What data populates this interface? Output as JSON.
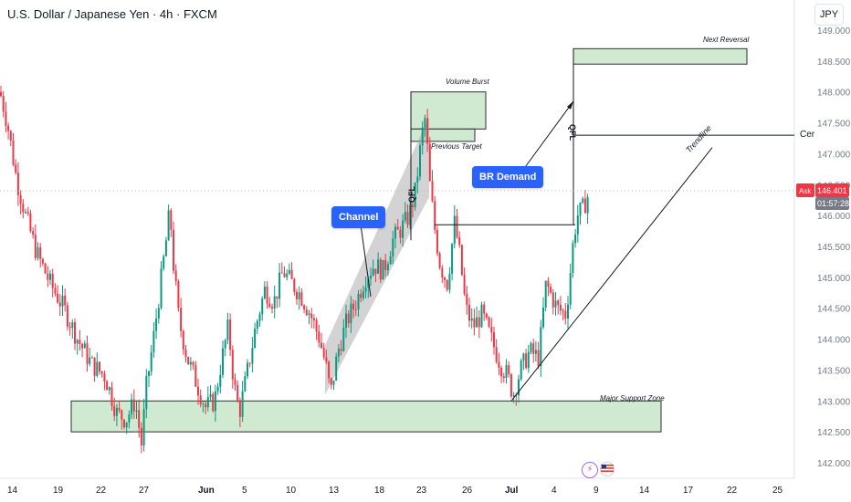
{
  "header": {
    "symbol_title": "U.S. Dollar / Japanese Yen · 4h · FXCM",
    "currency": "JPY"
  },
  "price": {
    "ask_label": "Ask",
    "ask_value": "146.401",
    "countdown": "01:57:28"
  },
  "annotations": {
    "channel": "Channel",
    "br_demand": "BR Demand",
    "volume_burst": "Volume Burst",
    "previous_target": "Previous Target",
    "next_reversal": "Next Reversal",
    "trendline": "Trendline",
    "major_support": "Major Support Zone",
    "qfl": "QFL",
    "cer": "Cer"
  },
  "icons": {
    "flash": "lightning-icon",
    "flag": "us-flag-icon"
  },
  "colors": {
    "bull": "#089981",
    "bear": "#f23645",
    "zone_fill": "#c8e6c9",
    "zone_stroke": "#2e2e2e",
    "channel_fill": "#9e9e9e",
    "accent": "#2962ff",
    "ask": "#f23645"
  },
  "chart_data": {
    "type": "candlestick",
    "title": "U.S. Dollar / Japanese Yen · 4h · FXCM",
    "ylim": [
      141.9,
      149.0
    ],
    "y_ticks": [
      "149.000",
      "148.500",
      "148.000",
      "147.500",
      "147.000",
      "146.500",
      "146.000",
      "145.500",
      "145.000",
      "144.500",
      "144.000",
      "143.500",
      "143.000",
      "142.500",
      "142.000"
    ],
    "x_ticks": [
      "14",
      "19",
      "22",
      "27",
      "Jun",
      "5",
      "10",
      "13",
      "18",
      "23",
      "26",
      "Jul",
      "4",
      "9",
      "14",
      "17",
      "22",
      "25"
    ],
    "last_price": 146.401,
    "close_path": [
      [
        0,
        148.0
      ],
      [
        8,
        147.5
      ],
      [
        18,
        146.6
      ],
      [
        28,
        146.0
      ],
      [
        40,
        145.4
      ],
      [
        55,
        144.9
      ],
      [
        70,
        144.5
      ],
      [
        85,
        144.0
      ],
      [
        100,
        143.6
      ],
      [
        115,
        143.4
      ],
      [
        128,
        142.8
      ],
      [
        138,
        142.7
      ],
      [
        148,
        143.0
      ],
      [
        155,
        142.3
      ],
      [
        160,
        143.2
      ],
      [
        168,
        144.0
      ],
      [
        175,
        144.8
      ],
      [
        182,
        145.6
      ],
      [
        186,
        146.1
      ],
      [
        190,
        145.2
      ],
      [
        196,
        144.3
      ],
      [
        205,
        143.7
      ],
      [
        215,
        143.3
      ],
      [
        225,
        142.9
      ],
      [
        235,
        143.0
      ],
      [
        242,
        143.6
      ],
      [
        250,
        144.2
      ],
      [
        256,
        143.3
      ],
      [
        262,
        142.8
      ],
      [
        270,
        143.4
      ],
      [
        280,
        144.2
      ],
      [
        290,
        144.8
      ],
      [
        300,
        144.6
      ],
      [
        310,
        145.1
      ],
      [
        320,
        144.9
      ],
      [
        330,
        144.7
      ],
      [
        340,
        144.4
      ],
      [
        350,
        144.0
      ],
      [
        358,
        143.5
      ],
      [
        362,
        143.1
      ],
      [
        370,
        143.8
      ],
      [
        380,
        144.3
      ],
      [
        390,
        144.6
      ],
      [
        400,
        145.0
      ],
      [
        410,
        145.2
      ],
      [
        420,
        145.1
      ],
      [
        430,
        145.6
      ],
      [
        440,
        145.8
      ],
      [
        448,
        146.0
      ],
      [
        455,
        146.4
      ],
      [
        462,
        147.3
      ],
      [
        466,
        147.6
      ],
      [
        470,
        146.6
      ],
      [
        476,
        145.8
      ],
      [
        482,
        145.2
      ],
      [
        490,
        144.9
      ],
      [
        498,
        145.9
      ],
      [
        504,
        145.3
      ],
      [
        510,
        144.5
      ],
      [
        518,
        144.2
      ],
      [
        528,
        144.4
      ],
      [
        538,
        144.0
      ],
      [
        548,
        143.6
      ],
      [
        556,
        143.4
      ],
      [
        562,
        143.1
      ],
      [
        570,
        143.5
      ],
      [
        580,
        143.8
      ],
      [
        590,
        143.7
      ],
      [
        598,
        144.9
      ],
      [
        604,
        144.7
      ],
      [
        610,
        144.5
      ],
      [
        620,
        144.4
      ],
      [
        628,
        145.6
      ],
      [
        632,
        146.0
      ],
      [
        638,
        146.1
      ],
      [
        646,
        146.4
      ]
    ],
    "zones": [
      {
        "name": "Major Support Zone",
        "x0": 78,
        "x1": 724,
        "y0": 142.5,
        "y1": 143.0
      },
      {
        "name": "Volume Burst",
        "x0": 450,
        "x1": 532,
        "y0": 147.4,
        "y1": 148.0
      },
      {
        "name": "Previous Target",
        "x0": 450,
        "x1": 520,
        "y0": 147.2,
        "y1": 147.4
      },
      {
        "name": "Next Reversal",
        "x0": 628,
        "x1": 818,
        "y0": 148.45,
        "y1": 148.7
      }
    ],
    "lines": [
      {
        "name": "Trendline",
        "from": [
          560,
          143.0
        ],
        "to": [
          780,
          147.1
        ]
      },
      {
        "name": "Cer",
        "from": [
          628,
          147.3
        ],
        "to": [
          870,
          147.3
        ]
      },
      {
        "name": "BR Demand level",
        "from": [
          476,
          145.85
        ],
        "to": [
          630,
          145.85
        ]
      },
      {
        "name": "QFL left",
        "from": [
          450,
          145.6
        ],
        "to": [
          450,
          148.0
        ]
      },
      {
        "name": "QFL right",
        "from": [
          628,
          145.85
        ],
        "to": [
          628,
          148.7
        ]
      }
    ],
    "channel": {
      "from_x": 356,
      "to_x": 470,
      "low_start": 143.1,
      "low_end": 146.3,
      "high_start": 143.9,
      "high_end": 147.6
    }
  }
}
